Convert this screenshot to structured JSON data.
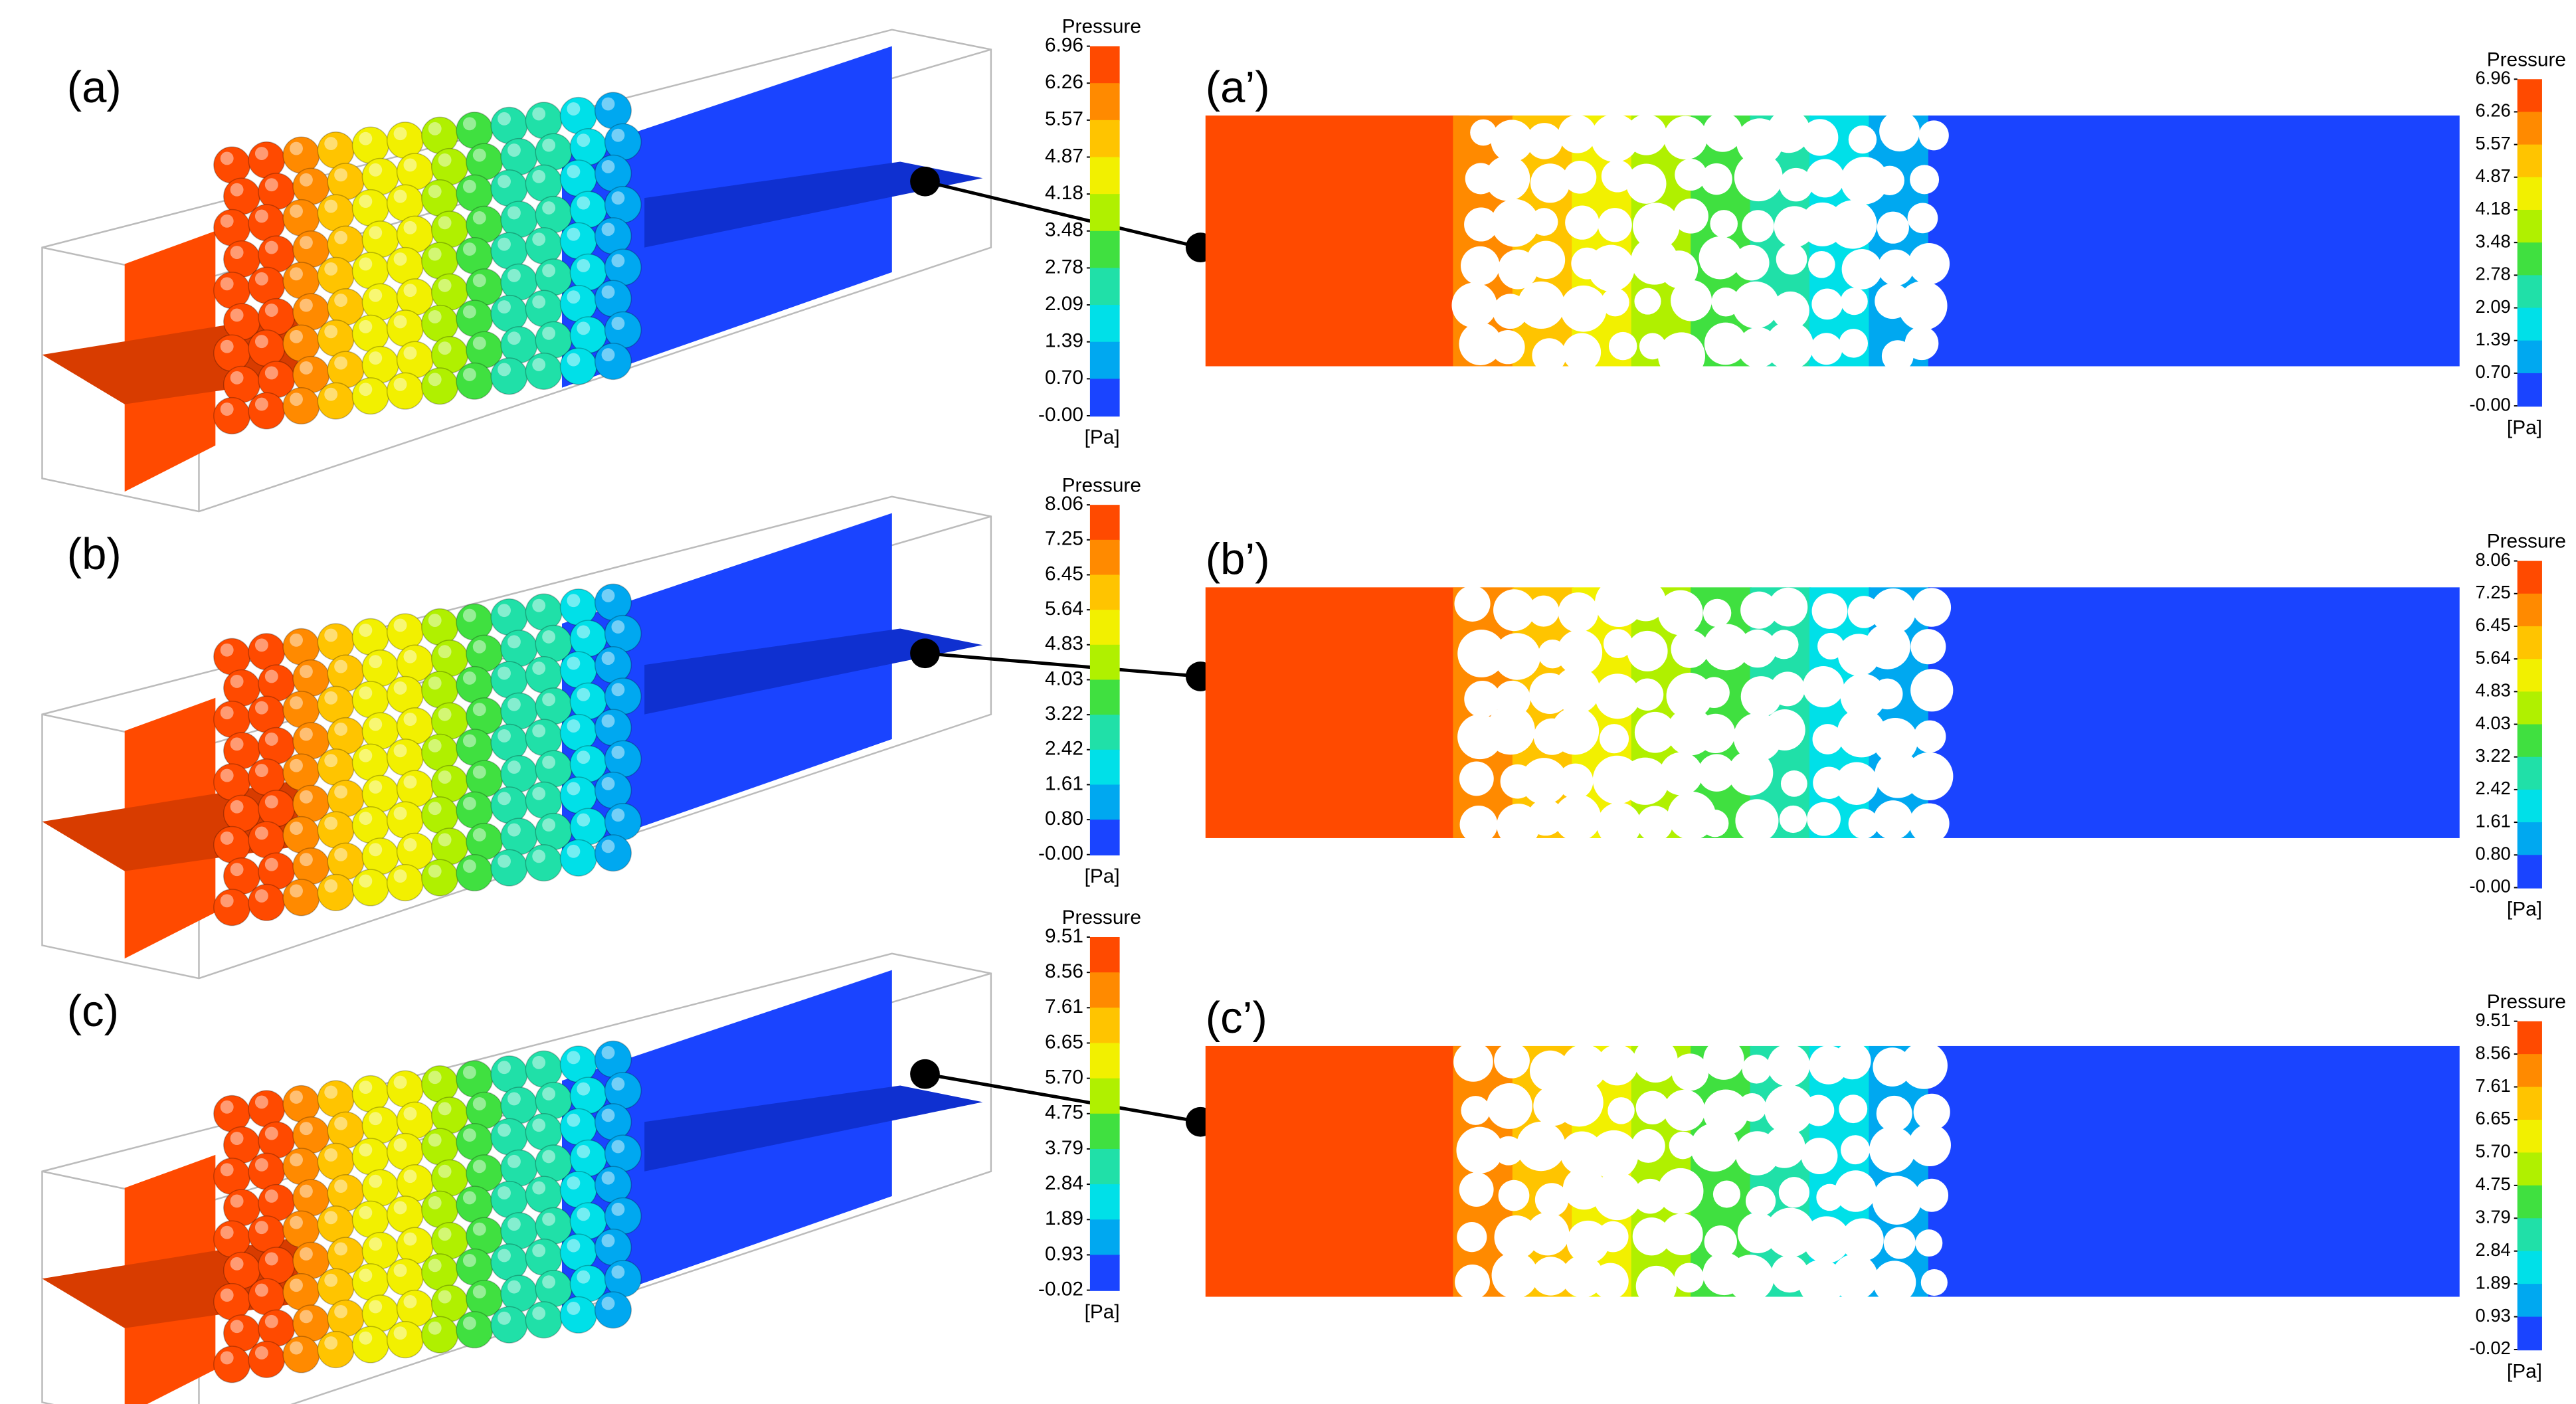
{
  "rows": [
    {
      "left": {
        "label": "(a)",
        "colorbar": {
          "title": "Pressure",
          "ticks": [
            "6.96",
            "6.26",
            "5.57",
            "4.87",
            "4.18",
            "3.48",
            "2.78",
            "2.09",
            "1.39",
            "0.70",
            "-0.00"
          ],
          "unit": "[Pa]"
        }
      },
      "right": {
        "label": "(a’)",
        "colorbar": {
          "title": "Pressure",
          "ticks": [
            "6.96",
            "6.26",
            "5.57",
            "4.87",
            "4.18",
            "3.48",
            "2.78",
            "2.09",
            "1.39",
            "0.70",
            "-0.00"
          ],
          "unit": "[Pa]"
        }
      }
    },
    {
      "left": {
        "label": "(b)",
        "colorbar": {
          "title": "Pressure",
          "ticks": [
            "8.06",
            "7.25",
            "6.45",
            "5.64",
            "4.83",
            "4.03",
            "3.22",
            "2.42",
            "1.61",
            "0.80",
            "-0.00"
          ],
          "unit": "[Pa]"
        }
      },
      "right": {
        "label": "(b’)",
        "colorbar": {
          "title": "Pressure",
          "ticks": [
            "8.06",
            "7.25",
            "6.45",
            "5.64",
            "4.83",
            "4.03",
            "3.22",
            "2.42",
            "1.61",
            "0.80",
            "-0.00"
          ],
          "unit": "[Pa]"
        }
      }
    },
    {
      "left": {
        "label": "(c)",
        "colorbar": {
          "title": "Pressure",
          "ticks": [
            "9.51",
            "8.56",
            "7.61",
            "6.65",
            "5.70",
            "4.75",
            "3.79",
            "2.84",
            "1.89",
            "0.93",
            "-0.02"
          ],
          "unit": "[Pa]"
        }
      },
      "right": {
        "label": "(c’)",
        "colorbar": {
          "title": "Pressure",
          "ticks": [
            "9.51",
            "8.56",
            "7.61",
            "6.65",
            "5.70",
            "4.75",
            "3.79",
            "2.84",
            "1.89",
            "0.93",
            "-0.02"
          ],
          "unit": "[Pa]"
        }
      }
    }
  ]
}
